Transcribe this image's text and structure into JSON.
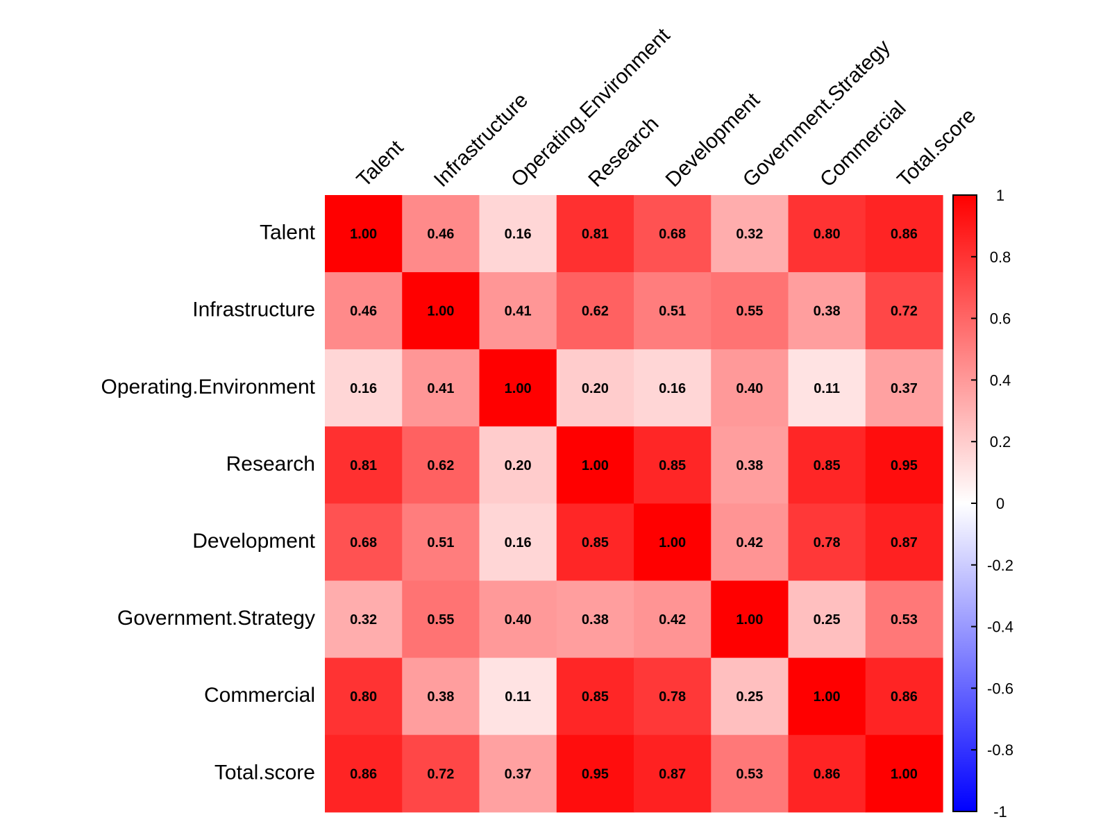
{
  "chart_data": {
    "type": "heatmap",
    "title": "",
    "xlabel": "",
    "ylabel": "",
    "variables": [
      "Talent",
      "Infrastructure",
      "Operating.Environment",
      "Research",
      "Development",
      "Government.Strategy",
      "Commercial",
      "Total.score"
    ],
    "matrix": [
      [
        1.0,
        0.46,
        0.16,
        0.81,
        0.68,
        0.32,
        0.8,
        0.86
      ],
      [
        0.46,
        1.0,
        0.41,
        0.62,
        0.51,
        0.55,
        0.38,
        0.72
      ],
      [
        0.16,
        0.41,
        1.0,
        0.2,
        0.16,
        0.4,
        0.11,
        0.37
      ],
      [
        0.81,
        0.62,
        0.2,
        1.0,
        0.85,
        0.38,
        0.85,
        0.95
      ],
      [
        0.68,
        0.51,
        0.16,
        0.85,
        1.0,
        0.42,
        0.78,
        0.87
      ],
      [
        0.32,
        0.55,
        0.4,
        0.38,
        0.42,
        1.0,
        0.25,
        0.53
      ],
      [
        0.8,
        0.38,
        0.11,
        0.85,
        0.78,
        0.25,
        1.0,
        0.86
      ],
      [
        0.86,
        0.72,
        0.37,
        0.95,
        0.87,
        0.53,
        0.86,
        1.0
      ]
    ],
    "colorbar": {
      "range": [
        -1,
        1
      ],
      "ticks": [
        1,
        0.8,
        0.6,
        0.4,
        0.2,
        0,
        -0.2,
        -0.4,
        -0.6,
        -0.8,
        -1
      ],
      "tick_labels": [
        "1",
        "0.8",
        "0.6",
        "0.4",
        "0.2",
        "0",
        "-0.2",
        "-0.4",
        "-0.6",
        "-0.8",
        "-1"
      ],
      "colors": {
        "low": "#0000ff",
        "mid": "#ffffff",
        "high": "#ff0000"
      },
      "placement": "right"
    }
  }
}
